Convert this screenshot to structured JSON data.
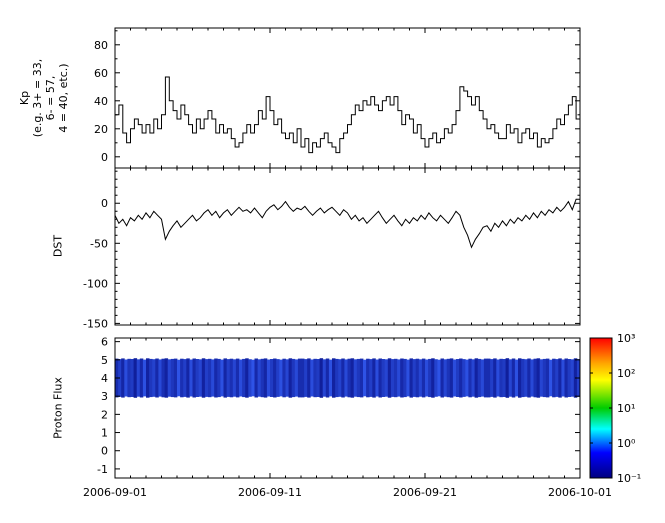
{
  "figure": {
    "background": "#ffffff",
    "xaxis": {
      "tick_labels": [
        "2006-09-01",
        "2006-09-11",
        "2006-09-21",
        "2006-10-01"
      ],
      "major_days": [
        0,
        10,
        20,
        30
      ],
      "minor_step_days": 1,
      "range_days": [
        0,
        30
      ]
    }
  },
  "chart_data": [
    {
      "type": "line",
      "id": "kp",
      "title": "",
      "ylabel_lines": [
        "Kp",
        "(e.g. 3+ = 33,",
        "6- = 57,",
        "4 = 40, etc.)"
      ],
      "ylim": [
        -8,
        92
      ],
      "yticks": [
        0,
        20,
        40,
        60,
        80
      ],
      "yminor_step": 10,
      "drawstyle": "steps",
      "step_hours": 6,
      "line_color": "#000000",
      "values": [
        30,
        37,
        17,
        10,
        20,
        27,
        23,
        17,
        23,
        17,
        27,
        20,
        30,
        57,
        40,
        33,
        27,
        37,
        30,
        23,
        17,
        27,
        20,
        27,
        33,
        27,
        17,
        23,
        17,
        20,
        13,
        7,
        10,
        17,
        23,
        17,
        23,
        33,
        27,
        43,
        33,
        23,
        27,
        17,
        13,
        17,
        10,
        20,
        7,
        13,
        3,
        10,
        7,
        13,
        17,
        10,
        7,
        3,
        13,
        17,
        23,
        30,
        37,
        33,
        40,
        37,
        43,
        37,
        33,
        40,
        43,
        37,
        43,
        33,
        23,
        30,
        27,
        17,
        23,
        13,
        7,
        13,
        17,
        10,
        13,
        20,
        17,
        23,
        33,
        50,
        47,
        43,
        37,
        43,
        33,
        27,
        20,
        23,
        17,
        13,
        13,
        23,
        17,
        20,
        10,
        17,
        20,
        13,
        17,
        7,
        13,
        10,
        13,
        20,
        27,
        23,
        30,
        37,
        43,
        27
      ]
    },
    {
      "type": "line",
      "id": "dst",
      "ylabel": "DST",
      "ylim": [
        -152,
        44
      ],
      "yticks": [
        0,
        -50,
        -100,
        -150
      ],
      "yminor_step": 10,
      "drawstyle": "line",
      "step_hours": 6,
      "line_color": "#000000",
      "values": [
        -15,
        -25,
        -20,
        -28,
        -18,
        -22,
        -15,
        -20,
        -12,
        -18,
        -10,
        -15,
        -20,
        -45,
        -35,
        -28,
        -22,
        -30,
        -25,
        -20,
        -15,
        -22,
        -18,
        -12,
        -8,
        -15,
        -10,
        -18,
        -12,
        -8,
        -15,
        -10,
        -5,
        -10,
        -8,
        -12,
        -6,
        -12,
        -18,
        -10,
        -5,
        -2,
        -8,
        -4,
        2,
        -5,
        -10,
        -6,
        -8,
        -4,
        -10,
        -15,
        -10,
        -6,
        -12,
        -8,
        -5,
        -10,
        -15,
        -8,
        -12,
        -20,
        -15,
        -22,
        -18,
        -25,
        -20,
        -15,
        -10,
        -18,
        -25,
        -20,
        -15,
        -22,
        -28,
        -20,
        -25,
        -18,
        -22,
        -15,
        -20,
        -12,
        -18,
        -22,
        -15,
        -20,
        -25,
        -18,
        -10,
        -15,
        -30,
        -40,
        -55,
        -45,
        -38,
        -30,
        -28,
        -35,
        -25,
        -30,
        -22,
        -28,
        -20,
        -25,
        -18,
        -22,
        -15,
        -20,
        -12,
        -18,
        -10,
        -15,
        -8,
        -12,
        -5,
        -10,
        -5,
        2,
        -8,
        5
      ]
    },
    {
      "type": "heatmap",
      "id": "proton_flux",
      "ylabel": "Proton Flux",
      "ylim": [
        -1.5,
        6.2
      ],
      "yticks": [
        -1,
        0,
        1,
        2,
        3,
        4,
        5,
        6
      ],
      "band_y": [
        2.95,
        5.05
      ],
      "band_color_low": "#000080",
      "band_color_high": "#4466ee",
      "intensities": [
        0.35,
        0.6,
        0.25,
        0.8,
        0.45,
        0.55,
        0.15,
        0.7,
        0.3,
        0.85,
        0.2,
        0.5,
        0.65,
        0.3,
        0.75,
        0.4,
        0.2,
        0.7,
        0.5,
        0.35,
        0.9,
        0.4,
        0.6,
        0.25,
        0.8,
        0.3,
        0.55,
        0.7,
        0.2,
        0.6,
        0.45,
        0.75,
        0.3,
        0.5,
        0.85,
        0.25,
        0.6,
        0.4,
        0.7,
        0.35,
        0.8,
        0.5,
        0.2,
        0.65,
        0.9,
        0.3,
        0.7,
        0.45,
        0.25,
        0.8,
        0.55,
        0.3,
        0.6,
        0.85,
        0.4,
        0.7,
        0.2,
        0.5,
        0.75,
        0.35
      ],
      "colorbar": {
        "tick_labels": [
          "10³",
          "10²",
          "10¹",
          "10⁰",
          "10⁻¹"
        ],
        "tick_exponents": [
          3,
          2,
          1,
          0,
          -1
        ],
        "gradient_stops": [
          {
            "offset": 0,
            "color": "#ff0000"
          },
          {
            "offset": 0.18,
            "color": "#ffa500"
          },
          {
            "offset": 0.3,
            "color": "#ffff00"
          },
          {
            "offset": 0.5,
            "color": "#00cc00"
          },
          {
            "offset": 0.65,
            "color": "#00ffff"
          },
          {
            "offset": 0.82,
            "color": "#0000ff"
          },
          {
            "offset": 1,
            "color": "#000080"
          }
        ]
      }
    }
  ]
}
